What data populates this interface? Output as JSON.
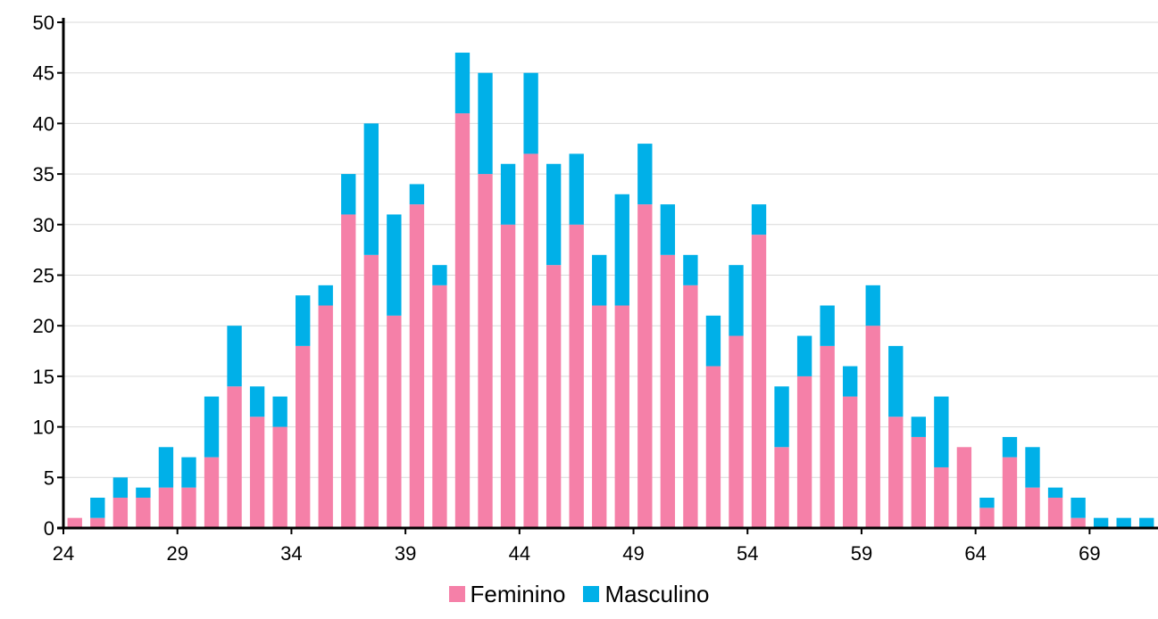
{
  "colors": {
    "feminino": "#F580A8",
    "masculino": "#00B0E8",
    "grid": "#D9D9D9",
    "axis": "#000000"
  },
  "chart_data": {
    "type": "bar",
    "stacked": true,
    "x": [
      24,
      25,
      26,
      27,
      28,
      29,
      30,
      31,
      32,
      33,
      34,
      35,
      36,
      37,
      38,
      39,
      40,
      41,
      42,
      43,
      44,
      45,
      46,
      47,
      48,
      49,
      50,
      51,
      52,
      53,
      54,
      55,
      56,
      57,
      58,
      59,
      60,
      61,
      62,
      63,
      64,
      65,
      66,
      67,
      68,
      69,
      70,
      71
    ],
    "xticks": [
      24,
      29,
      34,
      39,
      44,
      49,
      54,
      59,
      64,
      69
    ],
    "ylim": [
      0,
      50
    ],
    "yticks": [
      0,
      5,
      10,
      15,
      20,
      25,
      30,
      35,
      40,
      45,
      50
    ],
    "grid": true,
    "legend_position": "bottom",
    "series": [
      {
        "name": "Feminino",
        "values": [
          1,
          1,
          3,
          3,
          4,
          4,
          7,
          14,
          11,
          10,
          18,
          22,
          31,
          27,
          21,
          32,
          24,
          41,
          35,
          30,
          37,
          26,
          30,
          22,
          22,
          32,
          27,
          24,
          16,
          19,
          29,
          8,
          15,
          18,
          13,
          20,
          11,
          9,
          6,
          8,
          2,
          7,
          4,
          3,
          1,
          0,
          0,
          0
        ]
      },
      {
        "name": "Masculino",
        "values": [
          0,
          2,
          2,
          1,
          4,
          3,
          6,
          6,
          3,
          3,
          5,
          2,
          4,
          13,
          10,
          2,
          2,
          6,
          10,
          6,
          8,
          10,
          7,
          5,
          11,
          6,
          5,
          3,
          5,
          7,
          3,
          6,
          4,
          4,
          3,
          4,
          7,
          2,
          7,
          0,
          1,
          2,
          4,
          1,
          2,
          1,
          1,
          1
        ]
      }
    ]
  }
}
